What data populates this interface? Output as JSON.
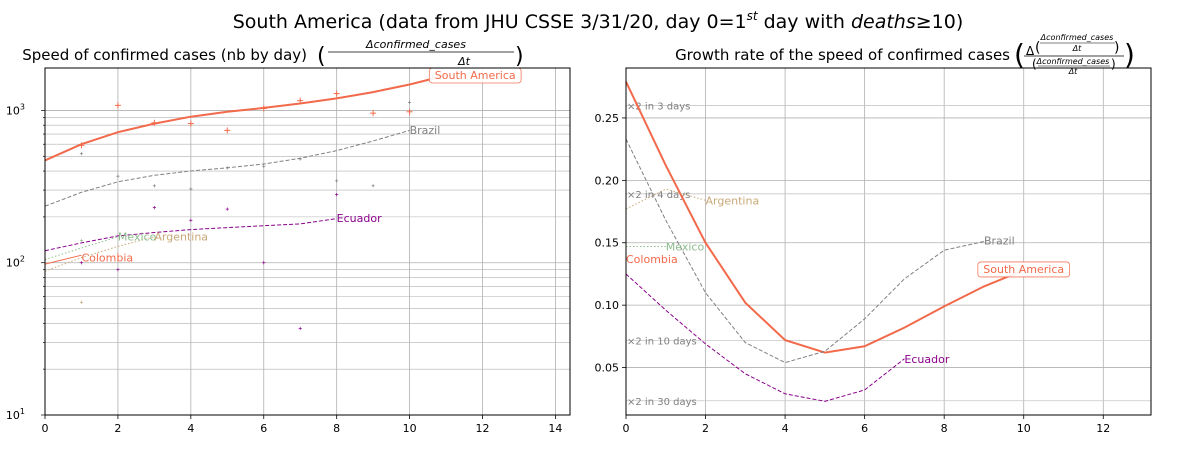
{
  "figure": {
    "suptitle_pre": "South America (data from JHU CSSE 3/31/20, day 0=1",
    "suptitle_sup": "st",
    "suptitle_mid": " day with ",
    "suptitle_italic": "deaths",
    "suptitle_post": "≥10)"
  },
  "colors": {
    "south_america": "#f26a4b",
    "brazil": "#808080",
    "ecuador": "#8b008b",
    "argentina": "#c8a878",
    "mexico": "#8fbc8f",
    "colombia": "#f26a4b",
    "grid": "#b0b0b0"
  },
  "chart_data": [
    {
      "type": "line",
      "title": "Speed of confirmed cases (nb by day)",
      "title_formula_num": "Δconfirmed_cases",
      "title_formula_den": "Δt",
      "yscale": "log",
      "xlim": [
        0,
        14.4
      ],
      "ylim": [
        10,
        1900
      ],
      "xticks": [
        "0",
        "2",
        "4",
        "6",
        "8",
        "10",
        "12",
        "14"
      ],
      "xtick_values": [
        0,
        2,
        4,
        6,
        8,
        10,
        12,
        14
      ],
      "yticks": [
        "10",
        "10",
        "10"
      ],
      "ytick_exps": [
        "1",
        "2",
        "3"
      ],
      "ytick_values": [
        10,
        100,
        1000
      ],
      "grid": true,
      "series": [
        {
          "name": "South America",
          "key": "south_america",
          "style": "solid",
          "x": [
            0,
            1,
            2,
            3,
            4,
            5,
            6,
            7,
            8,
            9,
            10,
            11
          ],
          "y": [
            470,
            600,
            720,
            820,
            910,
            980,
            1040,
            1110,
            1200,
            1320,
            1480,
            1700
          ],
          "scatter_x": [
            1,
            2,
            3,
            4,
            5,
            6,
            7,
            8,
            9,
            10
          ],
          "scatter_y": [
            590,
            1080,
            830,
            820,
            740,
            1030,
            1160,
            1290,
            960,
            980
          ]
        },
        {
          "name": "Brazil",
          "key": "brazil",
          "style": "dashed",
          "x": [
            0,
            1,
            2,
            3,
            4,
            5,
            6,
            7,
            8,
            9,
            10
          ],
          "y": [
            235,
            290,
            340,
            375,
            400,
            420,
            445,
            485,
            545,
            630,
            740
          ],
          "scatter_x": [
            1,
            2,
            3,
            4,
            5,
            6,
            7,
            8,
            9,
            10
          ],
          "scatter_y": [
            520,
            370,
            320,
            305,
            420,
            430,
            480,
            345,
            320,
            1130
          ]
        },
        {
          "name": "Ecuador",
          "key": "ecuador",
          "style": "dashed",
          "x": [
            0,
            1,
            2,
            3,
            4,
            5,
            6,
            7,
            8
          ],
          "y": [
            120,
            135,
            150,
            158,
            165,
            170,
            175,
            180,
            195
          ],
          "scatter_x": [
            1,
            2,
            3,
            4,
            5,
            6,
            7,
            8
          ],
          "scatter_y": [
            100,
            90,
            230,
            190,
            225,
            100,
            37,
            280
          ]
        },
        {
          "name": "Mexico",
          "key": "mexico",
          "style": "dotted",
          "x": [
            0,
            1,
            2
          ],
          "y": [
            105,
            125,
            148
          ],
          "scatter_x": [
            1
          ],
          "scatter_y": [
            140
          ]
        },
        {
          "name": "Argentina",
          "key": "argentina",
          "style": "dotted",
          "x": [
            0,
            1,
            2,
            3
          ],
          "y": [
            88,
            108,
            128,
            148
          ],
          "scatter_x": [
            1
          ],
          "scatter_y": [
            55
          ]
        },
        {
          "name": "Colombia",
          "key": "colombia",
          "style": "solid_thin",
          "x": [
            0,
            1
          ],
          "y": [
            98,
            112
          ],
          "scatter_x": [],
          "scatter_y": []
        }
      ],
      "labels": [
        {
          "text": "South America",
          "key": "south_america",
          "x": 11.8,
          "y": 1710,
          "boxed": true
        },
        {
          "text": "Brazil",
          "key": "brazil",
          "x": 10.0,
          "y": 745,
          "boxed": false
        },
        {
          "text": "Ecuador",
          "key": "ecuador",
          "x": 8.0,
          "y": 196,
          "boxed": false
        },
        {
          "text": "Mexico",
          "key": "mexico",
          "x": 2.0,
          "y": 149,
          "boxed": false
        },
        {
          "text": "Argentina",
          "key": "argentina",
          "x": 3.0,
          "y": 149,
          "boxed": false
        },
        {
          "text": "Colombia",
          "key": "colombia",
          "x": 1.0,
          "y": 108,
          "boxed": false
        }
      ]
    },
    {
      "type": "line",
      "title": "Growth rate of the speed of confirmed cases",
      "title_formula_inner_num": "Δconfirmed_cases",
      "title_formula_inner_den": "Δt",
      "title_formula_outer_den_num": "Δconfirmed_cases",
      "title_formula_outer_den_den": "Δt",
      "yscale": "linear",
      "xlim": [
        0,
        13.2
      ],
      "ylim": [
        0.012,
        0.29
      ],
      "xticks": [
        "0",
        "2",
        "4",
        "6",
        "8",
        "10",
        "12"
      ],
      "xtick_values": [
        0,
        2,
        4,
        6,
        8,
        10,
        12
      ],
      "yticks": [
        "0.05",
        "0.10",
        "0.15",
        "0.20",
        "0.25"
      ],
      "ytick_values": [
        0.05,
        0.1,
        0.15,
        0.2,
        0.25
      ],
      "grid": true,
      "hlines": [
        {
          "label": "×2 in 3 days",
          "y": 0.2599
        },
        {
          "label": "×2 in 4 days",
          "y": 0.1892
        },
        {
          "label": "×2 in 10 days",
          "y": 0.0718
        },
        {
          "label": "×2 in 30 days",
          "y": 0.0234
        }
      ],
      "series": [
        {
          "name": "South America",
          "key": "south_america",
          "style": "solid",
          "x": [
            0,
            1,
            2,
            3,
            4,
            5,
            6,
            7,
            8,
            9,
            10
          ],
          "y": [
            0.279,
            0.212,
            0.15,
            0.102,
            0.072,
            0.062,
            0.067,
            0.082,
            0.099,
            0.115,
            0.128
          ]
        },
        {
          "name": "Brazil",
          "key": "brazil",
          "style": "dashed",
          "x": [
            0,
            1,
            2,
            3,
            4,
            5,
            6,
            7,
            8,
            9
          ],
          "y": [
            0.233,
            0.168,
            0.11,
            0.07,
            0.054,
            0.063,
            0.089,
            0.121,
            0.144,
            0.151
          ]
        },
        {
          "name": "Ecuador",
          "key": "ecuador",
          "style": "dashed",
          "x": [
            0,
            1,
            2,
            3,
            4,
            5,
            6,
            7
          ],
          "y": [
            0.125,
            0.096,
            0.069,
            0.045,
            0.029,
            0.023,
            0.032,
            0.057
          ]
        },
        {
          "name": "Argentina",
          "key": "argentina",
          "style": "dotted",
          "x": [
            0,
            1,
            2
          ],
          "y": [
            0.177,
            0.193,
            0.184
          ]
        },
        {
          "name": "Mexico",
          "key": "mexico",
          "style": "dotted",
          "x": [
            0,
            1
          ],
          "y": [
            0.147,
            0.147
          ]
        },
        {
          "name": "Colombia",
          "key": "colombia",
          "style": "solid_thin",
          "x": [],
          "y": []
        }
      ],
      "labels": [
        {
          "text": "South America",
          "key": "south_america",
          "x": 10.0,
          "y": 0.129,
          "boxed": true
        },
        {
          "text": "Brazil",
          "key": "brazil",
          "x": 9.0,
          "y": 0.152,
          "boxed": false
        },
        {
          "text": "Ecuador",
          "key": "ecuador",
          "x": 7.0,
          "y": 0.057,
          "boxed": false
        },
        {
          "text": "Argentina",
          "key": "argentina",
          "x": 2.0,
          "y": 0.184,
          "boxed": false
        },
        {
          "text": "Mexico",
          "key": "mexico",
          "x": 1.0,
          "y": 0.147,
          "boxed": false
        },
        {
          "text": "Colombia",
          "key": "colombia",
          "x": 0.0,
          "y": 0.137,
          "boxed": false
        }
      ]
    }
  ]
}
